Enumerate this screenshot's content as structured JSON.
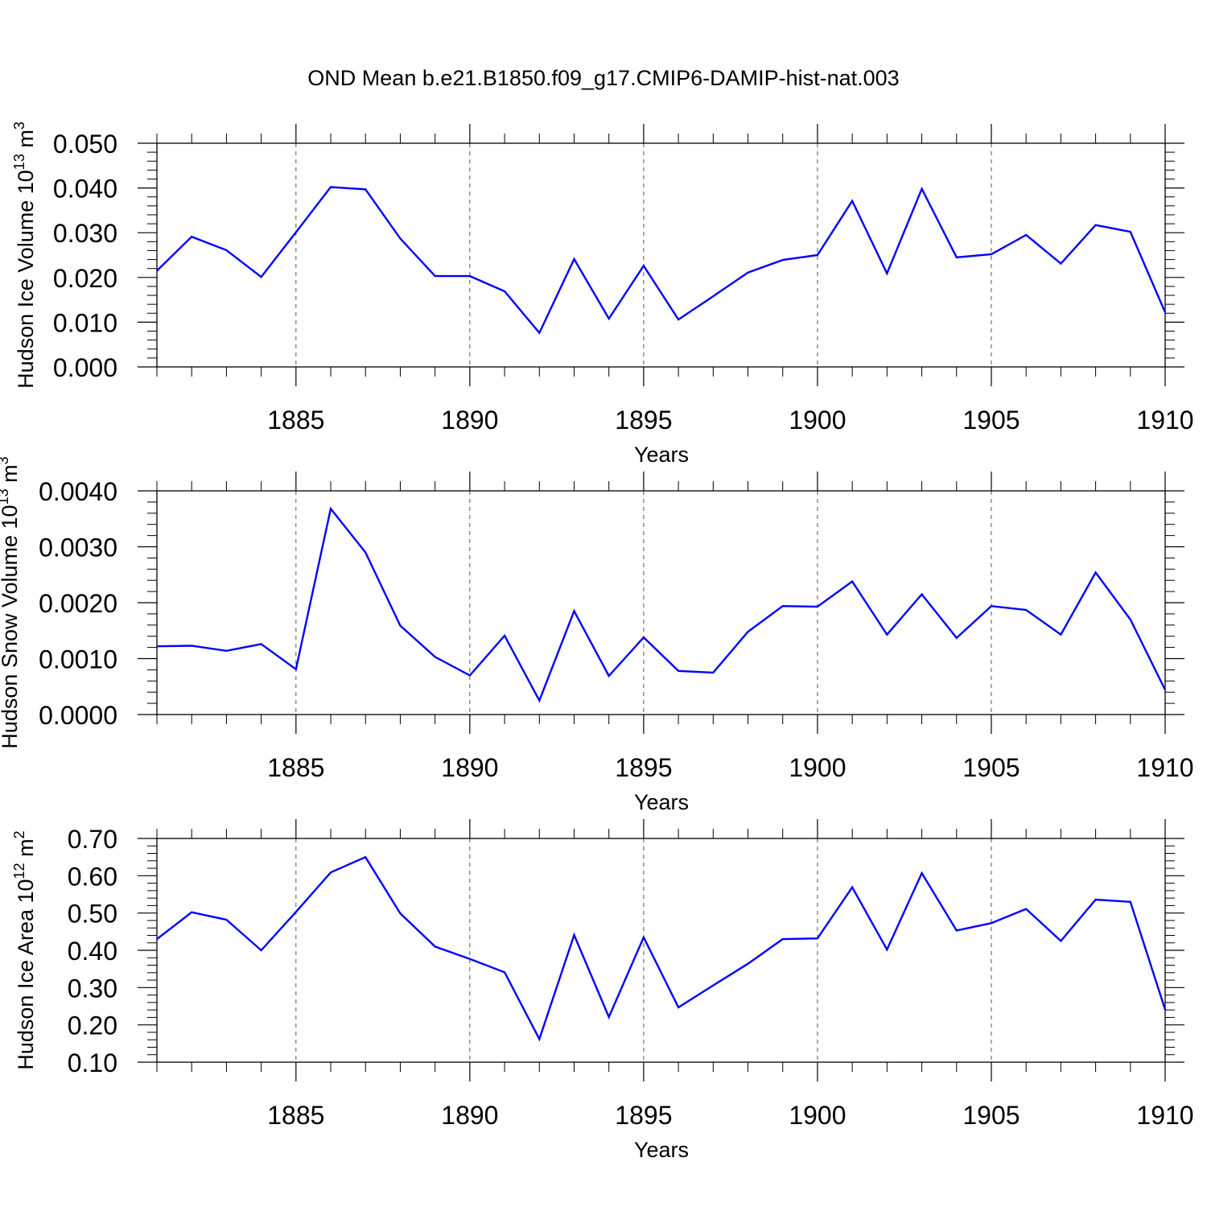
{
  "figure": {
    "title": "OND Mean b.e21.B1850.f09_g17.CMIP6-DAMIP-hist-nat.003",
    "line_color": "#0000ff",
    "grid": "vertical dashed lines at major x ticks"
  },
  "chart_data": [
    {
      "type": "line",
      "xlabel": "Years",
      "ylabel": "Hudson Ice Volume 10",
      "ylabel_exp": "13",
      "ylabel_unit": " m",
      "ylabel_unit_exp": "3",
      "xlim": [
        1881,
        1910
      ],
      "ylim": [
        0.0,
        0.05
      ],
      "x_ticks": [
        1885,
        1890,
        1895,
        1900,
        1905,
        1910
      ],
      "x_tick_labels": [
        "1885",
        "1890",
        "1895",
        "1900",
        "1905",
        "1910"
      ],
      "y_ticks": [
        0.0,
        0.01,
        0.02,
        0.03,
        0.04,
        0.05
      ],
      "y_tick_labels": [
        "0.000",
        "0.010",
        "0.020",
        "0.030",
        "0.040",
        "0.050"
      ],
      "y_minor_step": 0.002,
      "x": [
        1881,
        1882,
        1883,
        1884,
        1885,
        1886,
        1887,
        1888,
        1889,
        1890,
        1891,
        1892,
        1893,
        1894,
        1895,
        1896,
        1897,
        1898,
        1899,
        1900,
        1901,
        1902,
        1903,
        1904,
        1905,
        1906,
        1907,
        1908,
        1909,
        1910
      ],
      "series": [
        {
          "values": [
            0.0215,
            0.0291,
            0.0261,
            0.0201,
            0.0301,
            0.0402,
            0.0397,
            0.0287,
            0.0203,
            0.0203,
            0.0169,
            0.0076,
            0.0241,
            0.0108,
            0.0226,
            0.0106,
            0.0158,
            0.0211,
            0.0239,
            0.025,
            0.0371,
            0.0209,
            0.0398,
            0.0245,
            0.0252,
            0.0295,
            0.0231,
            0.0317,
            0.0302,
            0.0122
          ]
        }
      ]
    },
    {
      "type": "line",
      "xlabel": "Years",
      "ylabel": "Hudson Snow Volume 10",
      "ylabel_exp": "13",
      "ylabel_unit": " m",
      "ylabel_unit_exp": "3",
      "xlim": [
        1881,
        1910
      ],
      "ylim": [
        0.0,
        0.004
      ],
      "x_ticks": [
        1885,
        1890,
        1895,
        1900,
        1905,
        1910
      ],
      "x_tick_labels": [
        "1885",
        "1890",
        "1895",
        "1900",
        "1905",
        "1910"
      ],
      "y_ticks": [
        0.0,
        0.001,
        0.002,
        0.003,
        0.004
      ],
      "y_tick_labels": [
        "0.0000",
        "0.0010",
        "0.0020",
        "0.0030",
        "0.0040"
      ],
      "y_minor_step": 0.0002,
      "x": [
        1881,
        1882,
        1883,
        1884,
        1885,
        1886,
        1887,
        1888,
        1889,
        1890,
        1891,
        1892,
        1893,
        1894,
        1895,
        1896,
        1897,
        1898,
        1899,
        1900,
        1901,
        1902,
        1903,
        1904,
        1905,
        1906,
        1907,
        1908,
        1909,
        1910
      ],
      "series": [
        {
          "values": [
            0.00122,
            0.00123,
            0.00114,
            0.00126,
            0.00081,
            0.00368,
            0.0029,
            0.00159,
            0.00103,
            0.0007,
            0.00141,
            0.00025,
            0.00185,
            0.00069,
            0.00138,
            0.00078,
            0.00075,
            0.00148,
            0.00194,
            0.00193,
            0.00238,
            0.00143,
            0.00215,
            0.00137,
            0.00194,
            0.00187,
            0.00143,
            0.00254,
            0.0017,
            0.00044
          ]
        }
      ]
    },
    {
      "type": "line",
      "xlabel": "Years",
      "ylabel": "Hudson Ice Area 10",
      "ylabel_exp": "12",
      "ylabel_unit": " m",
      "ylabel_unit_exp": "2",
      "xlim": [
        1881,
        1910
      ],
      "ylim": [
        0.1,
        0.7
      ],
      "x_ticks": [
        1885,
        1890,
        1895,
        1900,
        1905,
        1910
      ],
      "x_tick_labels": [
        "1885",
        "1890",
        "1895",
        "1900",
        "1905",
        "1910"
      ],
      "y_ticks": [
        0.1,
        0.2,
        0.3,
        0.4,
        0.5,
        0.6,
        0.7
      ],
      "y_tick_labels": [
        "0.10",
        "0.20",
        "0.30",
        "0.40",
        "0.50",
        "0.60",
        "0.70"
      ],
      "y_minor_step": 0.02,
      "x": [
        1881,
        1882,
        1883,
        1884,
        1885,
        1886,
        1887,
        1888,
        1889,
        1890,
        1891,
        1892,
        1893,
        1894,
        1895,
        1896,
        1897,
        1898,
        1899,
        1900,
        1901,
        1902,
        1903,
        1904,
        1905,
        1906,
        1907,
        1908,
        1909,
        1910
      ],
      "series": [
        {
          "values": [
            0.43,
            0.502,
            0.482,
            0.4,
            0.503,
            0.609,
            0.65,
            0.499,
            0.41,
            0.377,
            0.341,
            0.162,
            0.441,
            0.221,
            0.435,
            0.247,
            0.306,
            0.364,
            0.43,
            0.432,
            0.569,
            0.402,
            0.607,
            0.453,
            0.473,
            0.511,
            0.425,
            0.536,
            0.53,
            0.241
          ]
        }
      ]
    }
  ]
}
